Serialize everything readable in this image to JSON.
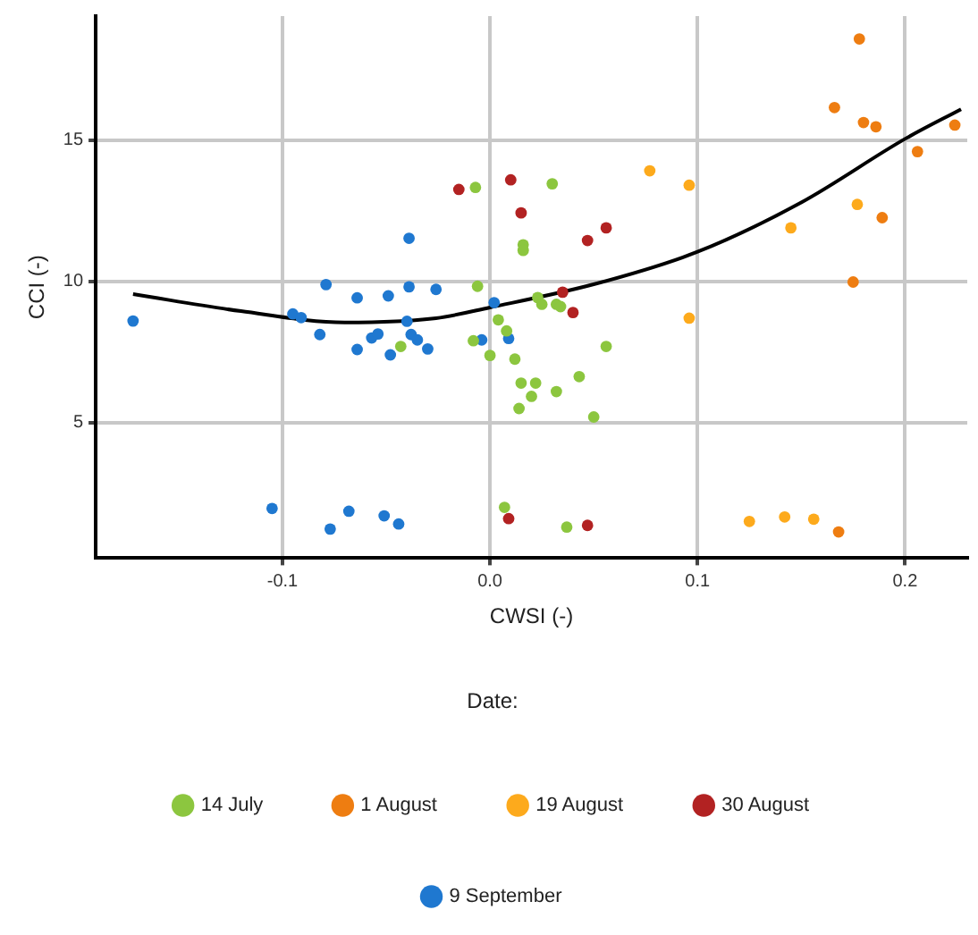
{
  "chart_data": {
    "type": "scatter",
    "xlabel": "CWSI (-)",
    "ylabel": "CCI (-)",
    "legend_title": "Date:",
    "legend": "bottom",
    "grid": true,
    "marker": "circle",
    "xlim": [
      -0.19,
      0.23
    ],
    "ylim": [
      0.2,
      19.4
    ],
    "xticks": [
      -0.1,
      {
        "value": 0,
        "label": "0.0"
      },
      0.1,
      0.2
    ],
    "yticks": [
      5,
      10,
      15
    ],
    "series": [
      {
        "name": "14 July",
        "color": "#8cc63f",
        "x": [
          -0.043,
          -0.008,
          -0.007,
          -0.006,
          0.0,
          0.004,
          0.007,
          0.008,
          0.012,
          0.015,
          0.014,
          0.016,
          0.016,
          0.02,
          0.022,
          0.023,
          0.025,
          0.03,
          0.032,
          0.032,
          0.034,
          0.037,
          0.043,
          0.05,
          0.056
        ],
        "values": [
          7.7,
          7.9,
          13.33,
          9.83,
          7.38,
          8.64,
          2.0,
          8.25,
          7.25,
          6.4,
          5.5,
          11.3,
          11.1,
          5.93,
          6.4,
          9.43,
          9.19,
          13.46,
          9.19,
          6.1,
          9.11,
          1.3,
          6.63,
          5.2,
          7.7
        ]
      },
      {
        "name": "1 August",
        "color": "#ee7d11",
        "x": [
          0.166,
          0.168,
          0.175,
          0.178,
          0.18,
          0.186,
          0.189,
          0.206,
          0.224
        ],
        "values": [
          16.16,
          1.13,
          9.98,
          18.59,
          15.63,
          15.48,
          12.26,
          14.6,
          15.54
        ]
      },
      {
        "name": "19 August",
        "color": "#fdaa1c",
        "x": [
          0.077,
          0.096,
          0.096,
          0.125,
          0.142,
          0.145,
          0.156,
          0.177
        ],
        "values": [
          13.92,
          13.41,
          8.7,
          1.5,
          1.66,
          11.9,
          1.58,
          12.73
        ]
      },
      {
        "name": "30 August",
        "color": "#b22222",
        "x": [
          -0.015,
          0.009,
          0.01,
          0.015,
          0.035,
          0.04,
          0.047,
          0.047,
          0.056
        ],
        "values": [
          13.26,
          1.6,
          13.6,
          12.43,
          9.62,
          8.9,
          11.45,
          1.36,
          11.9
        ]
      },
      {
        "name": "9 September",
        "color": "#1f78d0",
        "x": [
          -0.172,
          -0.105,
          -0.095,
          -0.091,
          -0.082,
          -0.079,
          -0.077,
          -0.068,
          -0.064,
          -0.064,
          -0.057,
          -0.054,
          -0.051,
          -0.049,
          -0.048,
          -0.044,
          -0.04,
          -0.039,
          -0.039,
          -0.038,
          -0.035,
          -0.03,
          -0.026,
          -0.004,
          0.002,
          0.009
        ],
        "values": [
          8.6,
          1.96,
          8.85,
          8.72,
          8.12,
          9.89,
          1.23,
          1.86,
          9.42,
          7.59,
          8.0,
          8.14,
          1.7,
          9.49,
          7.4,
          1.41,
          8.59,
          11.53,
          9.81,
          8.12,
          7.93,
          7.61,
          9.72,
          7.93,
          9.25,
          7.98
        ]
      },
      {
        "type": "line",
        "color": "#000000",
        "line_style": "solid",
        "marker": "none",
        "x": [
          -0.172,
          -0.12,
          -0.07,
          -0.026,
          0.0,
          0.05,
          0.1,
          0.15,
          0.2,
          0.227
        ],
        "values": [
          9.55,
          8.95,
          8.55,
          8.7,
          9.08,
          9.9,
          11.05,
          12.8,
          15.05,
          16.1
        ]
      }
    ]
  }
}
